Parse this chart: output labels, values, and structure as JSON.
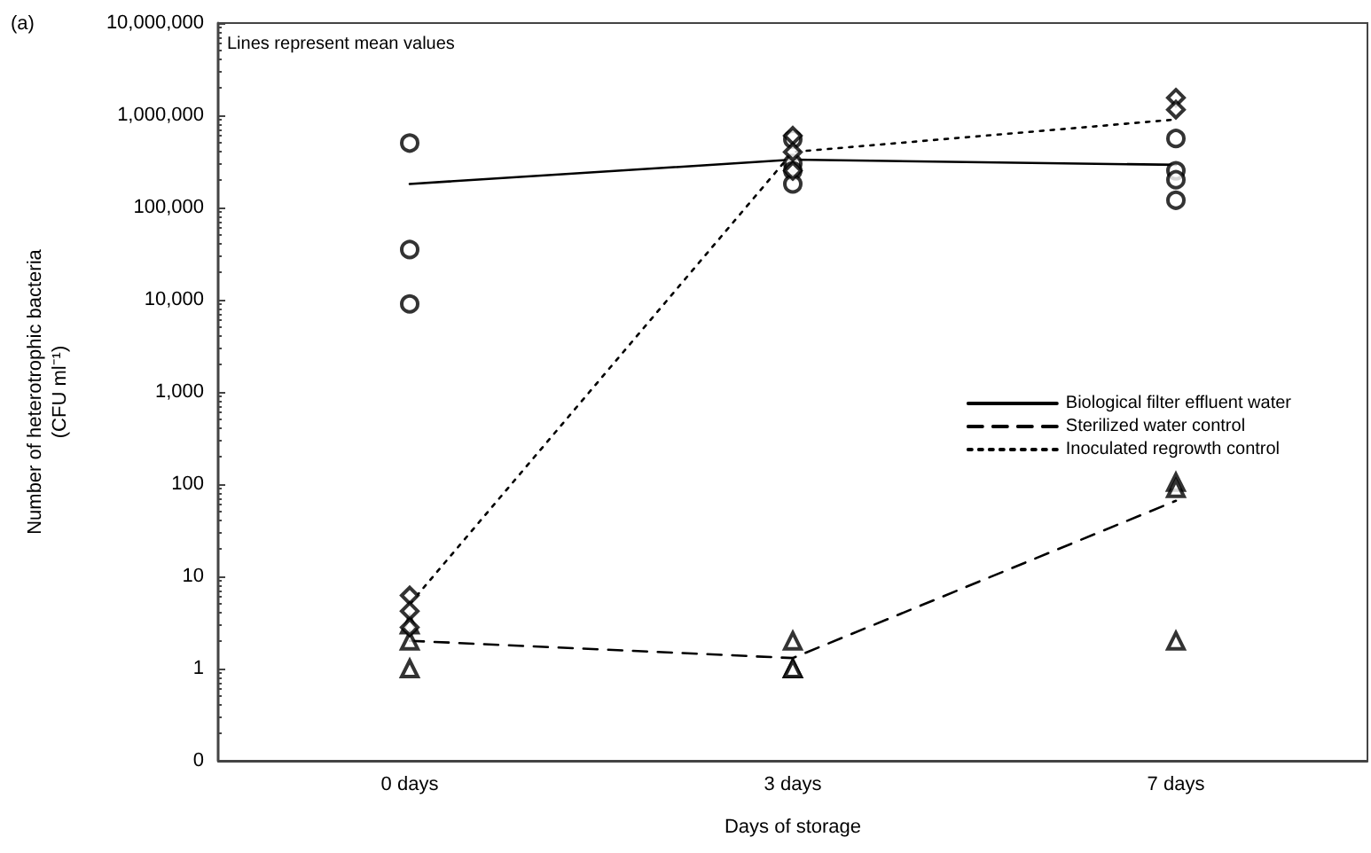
{
  "chart_data": {
    "type": "line",
    "xlabel": "Days of storage",
    "ylabel": "Number of heterotrophic bacteria\n(CFU ml⁻¹)",
    "annotations": [
      "(a)",
      "Lines represent mean values"
    ],
    "categories": [
      "0 days",
      "3 days",
      "7 days"
    ],
    "log": "y",
    "ylim": [
      0.1,
      10000000
    ],
    "yticks": [
      {
        "value": 0.1,
        "label": "0"
      },
      {
        "value": 1,
        "label": "1"
      },
      {
        "value": 10,
        "label": "10"
      },
      {
        "value": 100,
        "label": "100"
      },
      {
        "value": 1000,
        "label": "1,000"
      },
      {
        "value": 10000,
        "label": "10,000"
      },
      {
        "value": 100000,
        "label": "100,000"
      },
      {
        "value": 1000000,
        "label": "1,000,000"
      },
      {
        "value": 10000000,
        "label": "10,000,000"
      }
    ],
    "grid": false,
    "legend": "right",
    "series": [
      {
        "type": "line",
        "name": "Biological filter effluent water",
        "color": "#000000",
        "line_style": "solid",
        "marker": "none",
        "values": [
          180000,
          330000,
          290000
        ]
      },
      {
        "type": "line",
        "name": "Sterilized water control",
        "color": "#000000",
        "line_style": "dashed",
        "marker": "none",
        "values": [
          2,
          1.3,
          66
        ]
      },
      {
        "type": "line",
        "name": "Inoculated regrowth control",
        "color": "#000000",
        "line_style": "dotted",
        "marker": "none",
        "values": [
          5,
          400000,
          900000
        ]
      },
      {
        "type": "scatter",
        "color": "#000000",
        "marker": "circle",
        "x": [
          "0 days",
          "0 days",
          "0 days",
          "3 days",
          "3 days",
          "3 days",
          "3 days",
          "7 days",
          "7 days",
          "7 days",
          "7 days"
        ],
        "values": [
          500000,
          35000,
          9000,
          550000,
          300000,
          250000,
          180000,
          560000,
          250000,
          200000,
          120000
        ]
      },
      {
        "type": "scatter",
        "color": "#000000",
        "marker": "triangle",
        "x": [
          "0 days",
          "0 days",
          "0 days",
          "3 days",
          "3 days",
          "3 days",
          "7 days",
          "7 days",
          "7 days"
        ],
        "values": [
          3,
          2,
          1,
          2,
          1,
          1,
          105,
          90,
          2
        ]
      },
      {
        "type": "scatter",
        "color": "#000000",
        "marker": "diamond",
        "x": [
          "0 days",
          "0 days",
          "0 days",
          "3 days",
          "3 days",
          "3 days",
          "7 days",
          "7 days"
        ],
        "values": [
          6.2,
          4.2,
          2.8,
          600000,
          400000,
          250000,
          1550000,
          1150000
        ]
      }
    ]
  }
}
